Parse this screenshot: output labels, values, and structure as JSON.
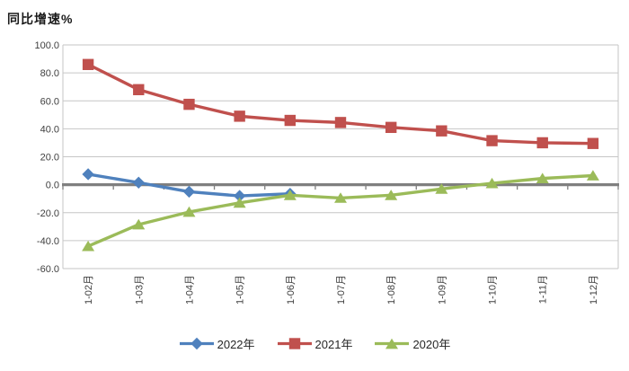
{
  "chart_data": {
    "type": "line",
    "title": "同比增速%",
    "categories": [
      "1-02月",
      "1-03月",
      "1-04月",
      "1-05月",
      "1-06月",
      "1-07月",
      "1-08月",
      "1-09月",
      "1-10月",
      "1-11月",
      "1-12月"
    ],
    "ylim": [
      -60,
      100
    ],
    "ytick_step": 20,
    "ytick_labels": [
      "100.0",
      "80.0",
      "60.0",
      "40.0",
      "20.0",
      "0.0",
      "-20.0",
      "-40.0",
      "-60.0"
    ],
    "grid": true,
    "legend_position": "bottom",
    "series": [
      {
        "id": "2022",
        "name": "2022年",
        "color": "#4F81BD",
        "marker": "diamond",
        "values": [
          7.5,
          1.5,
          -5.0,
          -8.0,
          -6.5,
          null,
          null,
          null,
          null,
          null,
          null
        ]
      },
      {
        "id": "2021",
        "name": "2021年",
        "color": "#C0504D",
        "marker": "square",
        "values": [
          86.0,
          68.0,
          57.5,
          49.0,
          46.0,
          44.5,
          41.0,
          38.5,
          31.5,
          30.0,
          29.5
        ]
      },
      {
        "id": "2020",
        "name": "2020年",
        "color": "#9BBB59",
        "marker": "triangle",
        "values": [
          -44.0,
          -28.5,
          -19.5,
          -13.0,
          -7.5,
          -9.5,
          -7.5,
          -3.0,
          1.0,
          4.5,
          6.5
        ]
      }
    ]
  },
  "colors": {
    "gridline": "#C6C6C6",
    "zero_axis": "#7F7F7F",
    "tick_label": "#3F3F3F"
  }
}
